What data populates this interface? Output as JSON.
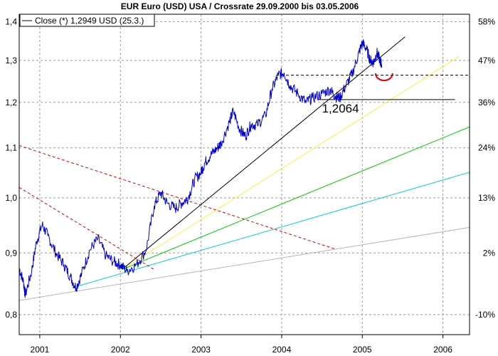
{
  "chart_data": {
    "type": "line",
    "title": "EUR Euro (USD) USA / Crossrate 29.09.2000 bis 03.05.2006",
    "legend": {
      "label": "Close (*) 1,2949 USD (25.3.)",
      "placement": "top-left"
    },
    "x_axis": {
      "ticks": [
        "2001",
        "2002",
        "2003",
        "2004",
        "2005",
        "2006"
      ],
      "range": [
        2000.745,
        2006.33
      ]
    },
    "y_axis_left": {
      "ticks": [
        "1,4",
        "1,3",
        "1,2",
        "1,1",
        "1,0",
        "0,9",
        "0,8"
      ],
      "tick_values": [
        1.4,
        1.3,
        1.2,
        1.1,
        1.0,
        0.9,
        0.8
      ],
      "scale": "log",
      "range": [
        0.77,
        1.42
      ]
    },
    "y_axis_right": {
      "ticks": [
        "58%",
        "47%",
        "36%",
        "24%",
        "13%",
        "2%",
        "-10%"
      ],
      "reference_price": 0.88
    },
    "grid": true,
    "series": [
      {
        "name": "Close (*)",
        "color": "#0000cc",
        "keypoints": [
          [
            2000.745,
            0.875
          ],
          [
            2000.8,
            0.85
          ],
          [
            2000.82,
            0.83
          ],
          [
            2000.9,
            0.87
          ],
          [
            2000.96,
            0.92
          ],
          [
            2001.03,
            0.95
          ],
          [
            2001.1,
            0.93
          ],
          [
            2001.2,
            0.9
          ],
          [
            2001.3,
            0.88
          ],
          [
            2001.38,
            0.86
          ],
          [
            2001.45,
            0.842
          ],
          [
            2001.52,
            0.865
          ],
          [
            2001.62,
            0.905
          ],
          [
            2001.72,
            0.925
          ],
          [
            2001.82,
            0.895
          ],
          [
            2001.92,
            0.885
          ],
          [
            2002.0,
            0.88
          ],
          [
            2002.08,
            0.87
          ],
          [
            2002.2,
            0.88
          ],
          [
            2002.32,
            0.905
          ],
          [
            2002.42,
            0.985
          ],
          [
            2002.5,
            1.01
          ],
          [
            2002.58,
            0.99
          ],
          [
            2002.68,
            0.98
          ],
          [
            2002.76,
            0.99
          ],
          [
            2002.84,
            1.0
          ],
          [
            2002.92,
            1.035
          ],
          [
            2003.0,
            1.05
          ],
          [
            2003.05,
            1.07
          ],
          [
            2003.12,
            1.085
          ],
          [
            2003.2,
            1.1
          ],
          [
            2003.25,
            1.11
          ],
          [
            2003.35,
            1.155
          ],
          [
            2003.4,
            1.18
          ],
          [
            2003.48,
            1.14
          ],
          [
            2003.55,
            1.125
          ],
          [
            2003.62,
            1.15
          ],
          [
            2003.7,
            1.15
          ],
          [
            2003.8,
            1.17
          ],
          [
            2003.88,
            1.23
          ],
          [
            2003.96,
            1.265
          ],
          [
            2004.03,
            1.27
          ],
          [
            2004.1,
            1.24
          ],
          [
            2004.2,
            1.22
          ],
          [
            2004.3,
            1.2
          ],
          [
            2004.38,
            1.21
          ],
          [
            2004.5,
            1.22
          ],
          [
            2004.6,
            1.23
          ],
          [
            2004.66,
            1.215
          ],
          [
            2004.72,
            1.21
          ],
          [
            2004.8,
            1.24
          ],
          [
            2004.88,
            1.27
          ],
          [
            2004.96,
            1.32
          ],
          [
            2005.0,
            1.345
          ],
          [
            2005.05,
            1.33
          ],
          [
            2005.1,
            1.3
          ],
          [
            2005.14,
            1.295
          ],
          [
            2005.18,
            1.32
          ],
          [
            2005.22,
            1.3
          ],
          [
            2005.24,
            1.29
          ]
        ]
      }
    ],
    "trendlines": [
      {
        "name": "support-black",
        "color": "#000000",
        "style": "solid",
        "from": [
          2002.02,
          0.872
        ],
        "to": [
          2005.53,
          1.36
        ]
      },
      {
        "name": "channel-yellow",
        "color": "#ffee44",
        "style": "solid",
        "from": [
          2002.02,
          0.872
        ],
        "to": [
          2006.2,
          1.31
        ]
      },
      {
        "name": "channel-green",
        "color": "#00cc00",
        "style": "solid",
        "from": [
          2002.02,
          0.872
        ],
        "to": [
          2006.33,
          1.145
        ]
      },
      {
        "name": "channel-cyan",
        "color": "#00ccdd",
        "style": "solid",
        "from": [
          2001.4,
          0.842
        ],
        "to": [
          2006.33,
          1.05
        ]
      },
      {
        "name": "channel-grey",
        "color": "#b4b4b4",
        "style": "solid",
        "from": [
          2000.745,
          0.822
        ],
        "to": [
          2006.33,
          0.945
        ]
      },
      {
        "name": "resistance-red-upper",
        "color": "#dd0000",
        "style": "dashed",
        "from": [
          2000.745,
          1.105
        ],
        "to": [
          2004.66,
          0.907
        ]
      },
      {
        "name": "resistance-red-lower",
        "color": "#dd0000",
        "style": "dashed",
        "from": [
          2000.745,
          1.02
        ],
        "to": [
          2002.42,
          0.872
        ]
      },
      {
        "name": "horizontal-1264",
        "color": "#000000",
        "style": "dashed",
        "from": [
          2003.93,
          1.264
        ],
        "to": [
          2006.33,
          1.264
        ]
      },
      {
        "name": "horizontal-1206",
        "color": "#000000",
        "style": "solid",
        "from": [
          2004.45,
          1.2064
        ],
        "to": [
          2006.15,
          1.2064
        ]
      }
    ],
    "annotations": [
      {
        "text": "1,2064",
        "x": 2004.5,
        "y": 1.2064
      }
    ],
    "highlight_arc": {
      "color": "#dd0000",
      "center": [
        2005.27,
        1.265
      ]
    }
  }
}
